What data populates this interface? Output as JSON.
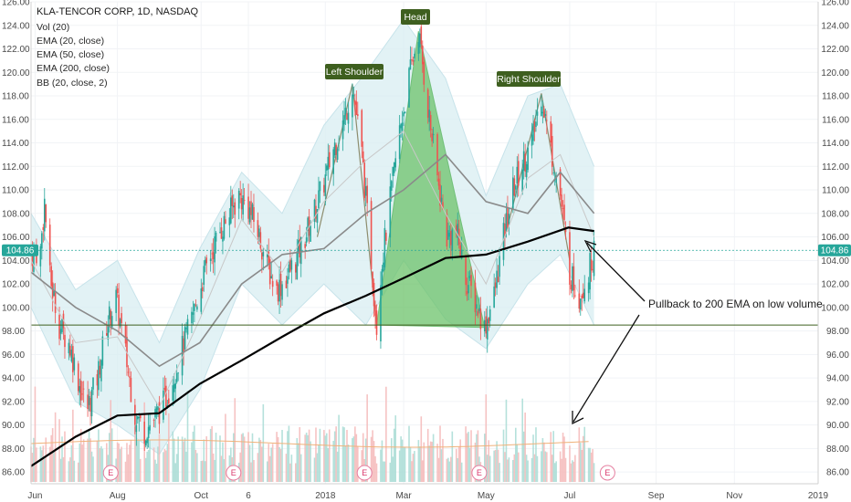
{
  "chart_data": {
    "type": "candlestick",
    "title": "KLA-TENCOR CORP, 1D, NASDAQ",
    "indicators": [
      "Vol (20)",
      "EMA (20, close)",
      "EMA (50, close)",
      "EMA (200, close)",
      "BB (20, close, 2)"
    ],
    "ylim": [
      85,
      126
    ],
    "y_ticks": [
      "86.00",
      "88.00",
      "90.00",
      "92.00",
      "94.00",
      "96.00",
      "98.00",
      "100.00",
      "102.00",
      "104.00",
      "106.00",
      "108.00",
      "110.00",
      "112.00",
      "114.00",
      "116.00",
      "118.00",
      "120.00",
      "122.00",
      "124.00",
      "126.00"
    ],
    "y_tick_values": [
      86,
      88,
      90,
      92,
      94,
      96,
      98,
      100,
      102,
      104,
      106,
      108,
      110,
      112,
      114,
      116,
      118,
      120,
      122,
      124,
      126
    ],
    "x_tick_labels": [
      "Jun",
      "Aug",
      "Oct",
      "6",
      "2018",
      "Mar",
      "May",
      "Jul",
      "Sep",
      "Nov",
      "2019"
    ],
    "x_tick_dates": [
      "2017-06-01",
      "2017-08-01",
      "2017-10-02",
      "2017-11-06",
      "2018-01-02",
      "2018-03-01",
      "2018-05-01",
      "2018-07-02",
      "2018-09-04",
      "2018-11-01",
      "2019-01-02"
    ],
    "x_range": [
      "2017-05-29",
      "2019-01-02"
    ],
    "last_price": "104.86",
    "last_price_value": 104.86,
    "support_level": 98.5,
    "close_series": [
      [
        "2017-05-29",
        104.5
      ],
      [
        "2017-06-05",
        104.8
      ],
      [
        "2017-06-08",
        109.0
      ],
      [
        "2017-06-12",
        102.5
      ],
      [
        "2017-06-19",
        98.5
      ],
      [
        "2017-06-26",
        97.0
      ],
      [
        "2017-07-05",
        93.0
      ],
      [
        "2017-07-10",
        91.5
      ],
      [
        "2017-07-17",
        94.0
      ],
      [
        "2017-07-24",
        98.5
      ],
      [
        "2017-07-31",
        100.8
      ],
      [
        "2017-08-07",
        96.0
      ],
      [
        "2017-08-14",
        91.0
      ],
      [
        "2017-08-21",
        89.5
      ],
      [
        "2017-08-28",
        90.5
      ],
      [
        "2017-09-05",
        92.0
      ],
      [
        "2017-09-11",
        94.0
      ],
      [
        "2017-09-18",
        96.5
      ],
      [
        "2017-09-25",
        99.0
      ],
      [
        "2017-10-02",
        102.0
      ],
      [
        "2017-10-09",
        104.5
      ],
      [
        "2017-10-16",
        106.5
      ],
      [
        "2017-10-23",
        108.0
      ],
      [
        "2017-10-30",
        109.5
      ],
      [
        "2017-11-06",
        108.5
      ],
      [
        "2017-11-13",
        106.5
      ],
      [
        "2017-11-20",
        103.5
      ],
      [
        "2017-11-27",
        101.5
      ],
      [
        "2017-12-04",
        102.5
      ],
      [
        "2017-12-11",
        104.0
      ],
      [
        "2017-12-18",
        106.0
      ],
      [
        "2017-12-26",
        108.5
      ],
      [
        "2018-01-02",
        111.0
      ],
      [
        "2018-01-08",
        113.5
      ],
      [
        "2018-01-16",
        116.0
      ],
      [
        "2018-01-22",
        119.0
      ],
      [
        "2018-01-29",
        113.0
      ],
      [
        "2018-02-05",
        104.0
      ],
      [
        "2018-02-09",
        98.5
      ],
      [
        "2018-02-12",
        103.0
      ],
      [
        "2018-02-20",
        110.0
      ],
      [
        "2018-02-26",
        115.0
      ],
      [
        "2018-03-05",
        119.5
      ],
      [
        "2018-03-12",
        123.5
      ],
      [
        "2018-03-19",
        117.0
      ],
      [
        "2018-03-26",
        111.0
      ],
      [
        "2018-04-02",
        106.0
      ],
      [
        "2018-04-09",
        106.5
      ],
      [
        "2018-04-16",
        102.5
      ],
      [
        "2018-04-23",
        100.5
      ],
      [
        "2018-04-30",
        98.3
      ],
      [
        "2018-05-07",
        101.0
      ],
      [
        "2018-05-14",
        106.0
      ],
      [
        "2018-05-21",
        110.0
      ],
      [
        "2018-05-29",
        112.5
      ],
      [
        "2018-06-04",
        114.0
      ],
      [
        "2018-06-11",
        118.2
      ],
      [
        "2018-06-18",
        113.5
      ],
      [
        "2018-06-25",
        109.5
      ],
      [
        "2018-07-02",
        103.0
      ],
      [
        "2018-07-09",
        101.0
      ],
      [
        "2018-07-16",
        103.0
      ],
      [
        "2018-07-20",
        104.86
      ]
    ],
    "ema_200": [
      [
        "2017-05-29",
        86.5
      ],
      [
        "2017-07-01",
        89.0
      ],
      [
        "2017-08-01",
        90.8
      ],
      [
        "2017-09-01",
        91.0
      ],
      [
        "2017-10-01",
        93.5
      ],
      [
        "2017-11-01",
        95.5
      ],
      [
        "2017-12-01",
        97.5
      ],
      [
        "2018-01-01",
        99.5
      ],
      [
        "2018-02-01",
        101.0
      ],
      [
        "2018-03-01",
        102.5
      ],
      [
        "2018-04-01",
        104.2
      ],
      [
        "2018-05-01",
        104.5
      ],
      [
        "2018-06-01",
        105.6
      ],
      [
        "2018-07-01",
        106.8
      ],
      [
        "2018-07-20",
        106.5
      ]
    ],
    "ema_50": [
      [
        "2017-05-29",
        103.0
      ],
      [
        "2017-07-01",
        100.0
      ],
      [
        "2017-08-01",
        98.0
      ],
      [
        "2017-09-01",
        95.0
      ],
      [
        "2017-10-01",
        97.0
      ],
      [
        "2017-11-01",
        102.0
      ],
      [
        "2017-12-01",
        104.5
      ],
      [
        "2018-01-01",
        105.0
      ],
      [
        "2018-02-01",
        108.0
      ],
      [
        "2018-03-01",
        110.0
      ],
      [
        "2018-04-01",
        113.0
      ],
      [
        "2018-05-01",
        109.0
      ],
      [
        "2018-06-01",
        108.0
      ],
      [
        "2018-06-25",
        111.5
      ],
      [
        "2018-07-20",
        108.0
      ]
    ],
    "ema_20": [
      [
        "2017-05-29",
        104.0
      ],
      [
        "2017-07-01",
        97.0
      ],
      [
        "2017-08-01",
        97.5
      ],
      [
        "2017-09-01",
        91.5
      ],
      [
        "2017-10-01",
        99.0
      ],
      [
        "2017-11-01",
        107.5
      ],
      [
        "2017-12-01",
        103.0
      ],
      [
        "2018-01-01",
        109.0
      ],
      [
        "2018-02-01",
        112.5
      ],
      [
        "2018-03-01",
        115.0
      ],
      [
        "2018-04-01",
        108.0
      ],
      [
        "2018-05-01",
        102.0
      ],
      [
        "2018-06-01",
        111.0
      ],
      [
        "2018-06-25",
        113.0
      ],
      [
        "2018-07-20",
        106.0
      ]
    ],
    "bb_upper": [
      [
        "2017-05-29",
        108.0
      ],
      [
        "2017-07-01",
        101.5
      ],
      [
        "2017-08-01",
        104.0
      ],
      [
        "2017-09-01",
        97.0
      ],
      [
        "2017-10-01",
        105.0
      ],
      [
        "2017-11-01",
        111.5
      ],
      [
        "2017-12-01",
        108.0
      ],
      [
        "2018-01-01",
        115.5
      ],
      [
        "2018-02-01",
        120.0
      ],
      [
        "2018-03-01",
        124.5
      ],
      [
        "2018-04-01",
        119.5
      ],
      [
        "2018-05-01",
        109.5
      ],
      [
        "2018-06-01",
        118.0
      ],
      [
        "2018-06-25",
        119.0
      ],
      [
        "2018-07-20",
        112.0
      ]
    ],
    "bb_lower": [
      [
        "2017-05-29",
        100.0
      ],
      [
        "2017-07-01",
        92.0
      ],
      [
        "2017-08-01",
        90.0
      ],
      [
        "2017-09-01",
        87.5
      ],
      [
        "2017-10-01",
        93.0
      ],
      [
        "2017-11-01",
        102.0
      ],
      [
        "2017-12-01",
        98.5
      ],
      [
        "2018-01-01",
        102.0
      ],
      [
        "2018-02-01",
        98.5
      ],
      [
        "2018-03-01",
        104.0
      ],
      [
        "2018-04-01",
        99.0
      ],
      [
        "2018-05-01",
        96.5
      ],
      [
        "2018-06-01",
        102.0
      ],
      [
        "2018-06-25",
        104.5
      ],
      [
        "2018-07-20",
        98.5
      ]
    ],
    "head_and_shoulders": {
      "points": [
        [
          "2018-02-09",
          98.5
        ],
        [
          "2018-03-12",
          123.5
        ],
        [
          "2018-04-30",
          98.3
        ]
      ],
      "left_shoulder": [
        "2018-01-22",
        119.0
      ],
      "right_shoulder": [
        "2018-06-11",
        118.2
      ]
    },
    "annotations": {
      "left_shoulder": "Left Shoulder",
      "head": "Head",
      "right_shoulder": "Right Shoulder",
      "note": "Pullback to 200 EMA on low volume"
    },
    "earnings_label": "E",
    "earnings_dates": [
      "2017-07-27",
      "2017-10-26",
      "2018-01-31",
      "2018-04-26",
      "2018-07-30"
    ],
    "volume_note": "volume histogram (scaled)",
    "colors": {
      "up": "#26a69a",
      "down": "#ef5350",
      "ema200": "#000000",
      "ema50": "#8a8a8a",
      "ema20": "#c8c8c8",
      "bb_fill": "#d8eef2",
      "pattern_fill": "#6dc36b",
      "badge": "#3e5f1f",
      "support": "#3e5f1f",
      "price_tag": "#26a69a"
    }
  }
}
